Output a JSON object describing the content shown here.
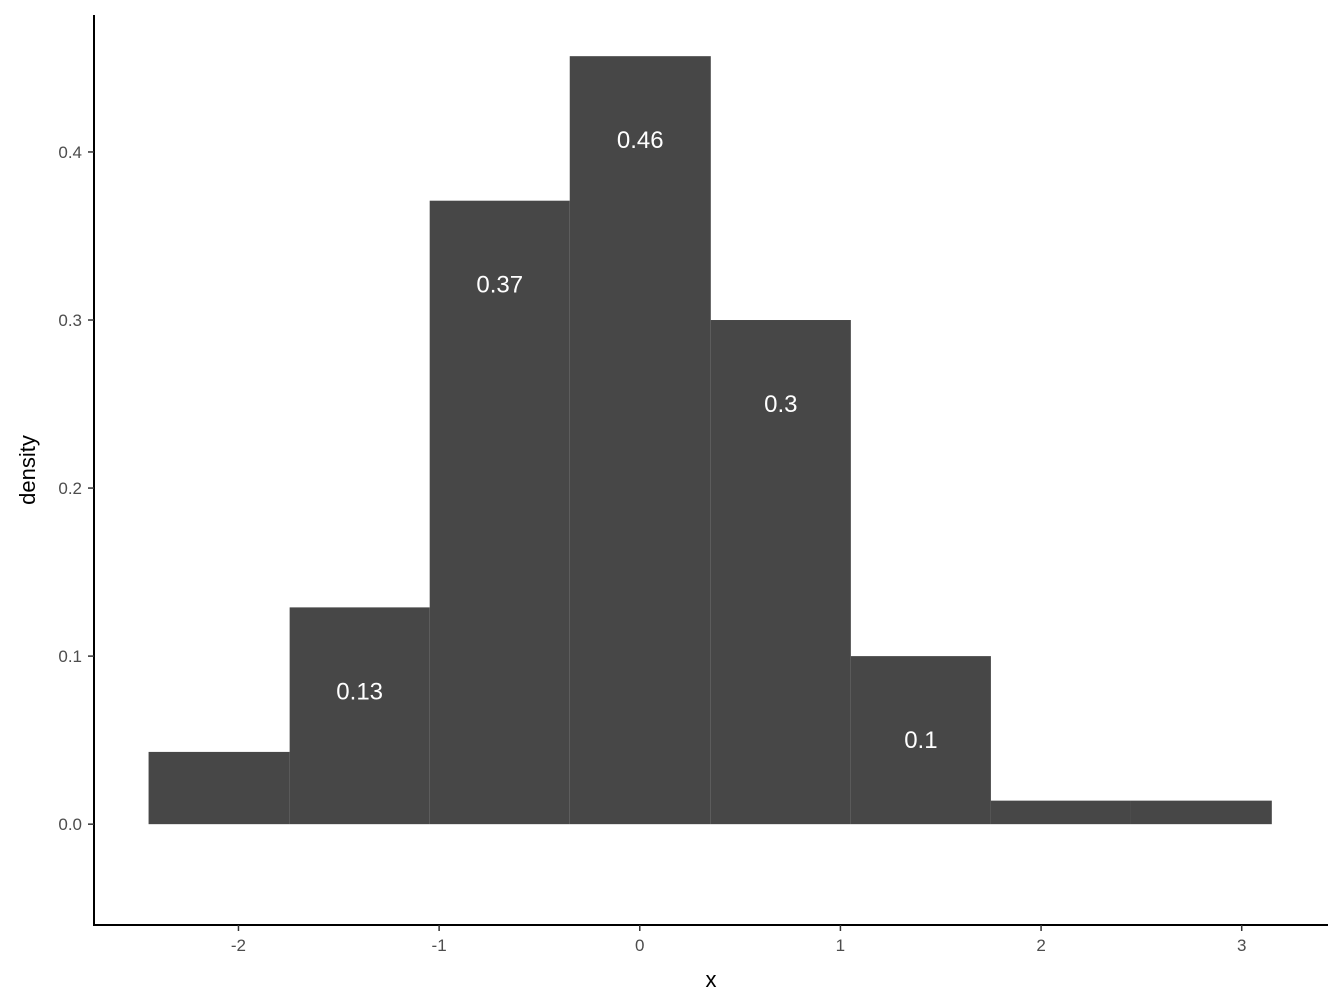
{
  "chart_data": {
    "type": "bar",
    "subtype": "histogram",
    "xlabel": "x",
    "ylabel": "density",
    "xlim": [
      -2.72,
      3.43
    ],
    "ylim": [
      -0.06,
      0.4815
    ],
    "xticks": [
      -2,
      -1,
      0,
      1,
      2,
      3
    ],
    "xtick_labels": [
      "-2",
      "-1",
      "0",
      "1",
      "2",
      "3"
    ],
    "yticks": [
      0.0,
      0.1,
      0.2,
      0.3,
      0.4
    ],
    "ytick_labels": [
      "0.0",
      "0.1",
      "0.2",
      "0.3",
      "0.4"
    ],
    "grid": false,
    "bar_color": "#474747",
    "label_color": "#ffffff",
    "bins": [
      {
        "xmin": -2.448,
        "xmax": -1.745,
        "density": 0.043,
        "label": ""
      },
      {
        "xmin": -1.745,
        "xmax": -1.047,
        "density": 0.129,
        "label": "0.13"
      },
      {
        "xmin": -1.047,
        "xmax": -0.349,
        "density": 0.371,
        "label": "0.37"
      },
      {
        "xmin": -0.349,
        "xmax": 0.354,
        "density": 0.457,
        "label": "0.46"
      },
      {
        "xmin": 0.354,
        "xmax": 1.052,
        "density": 0.3,
        "label": "0.3"
      },
      {
        "xmin": 1.052,
        "xmax": 1.75,
        "density": 0.1,
        "label": "0.1"
      },
      {
        "xmin": 1.75,
        "xmax": 2.448,
        "density": 0.014,
        "label": ""
      },
      {
        "xmin": 2.448,
        "xmax": 3.15,
        "density": 0.014,
        "label": ""
      }
    ]
  }
}
